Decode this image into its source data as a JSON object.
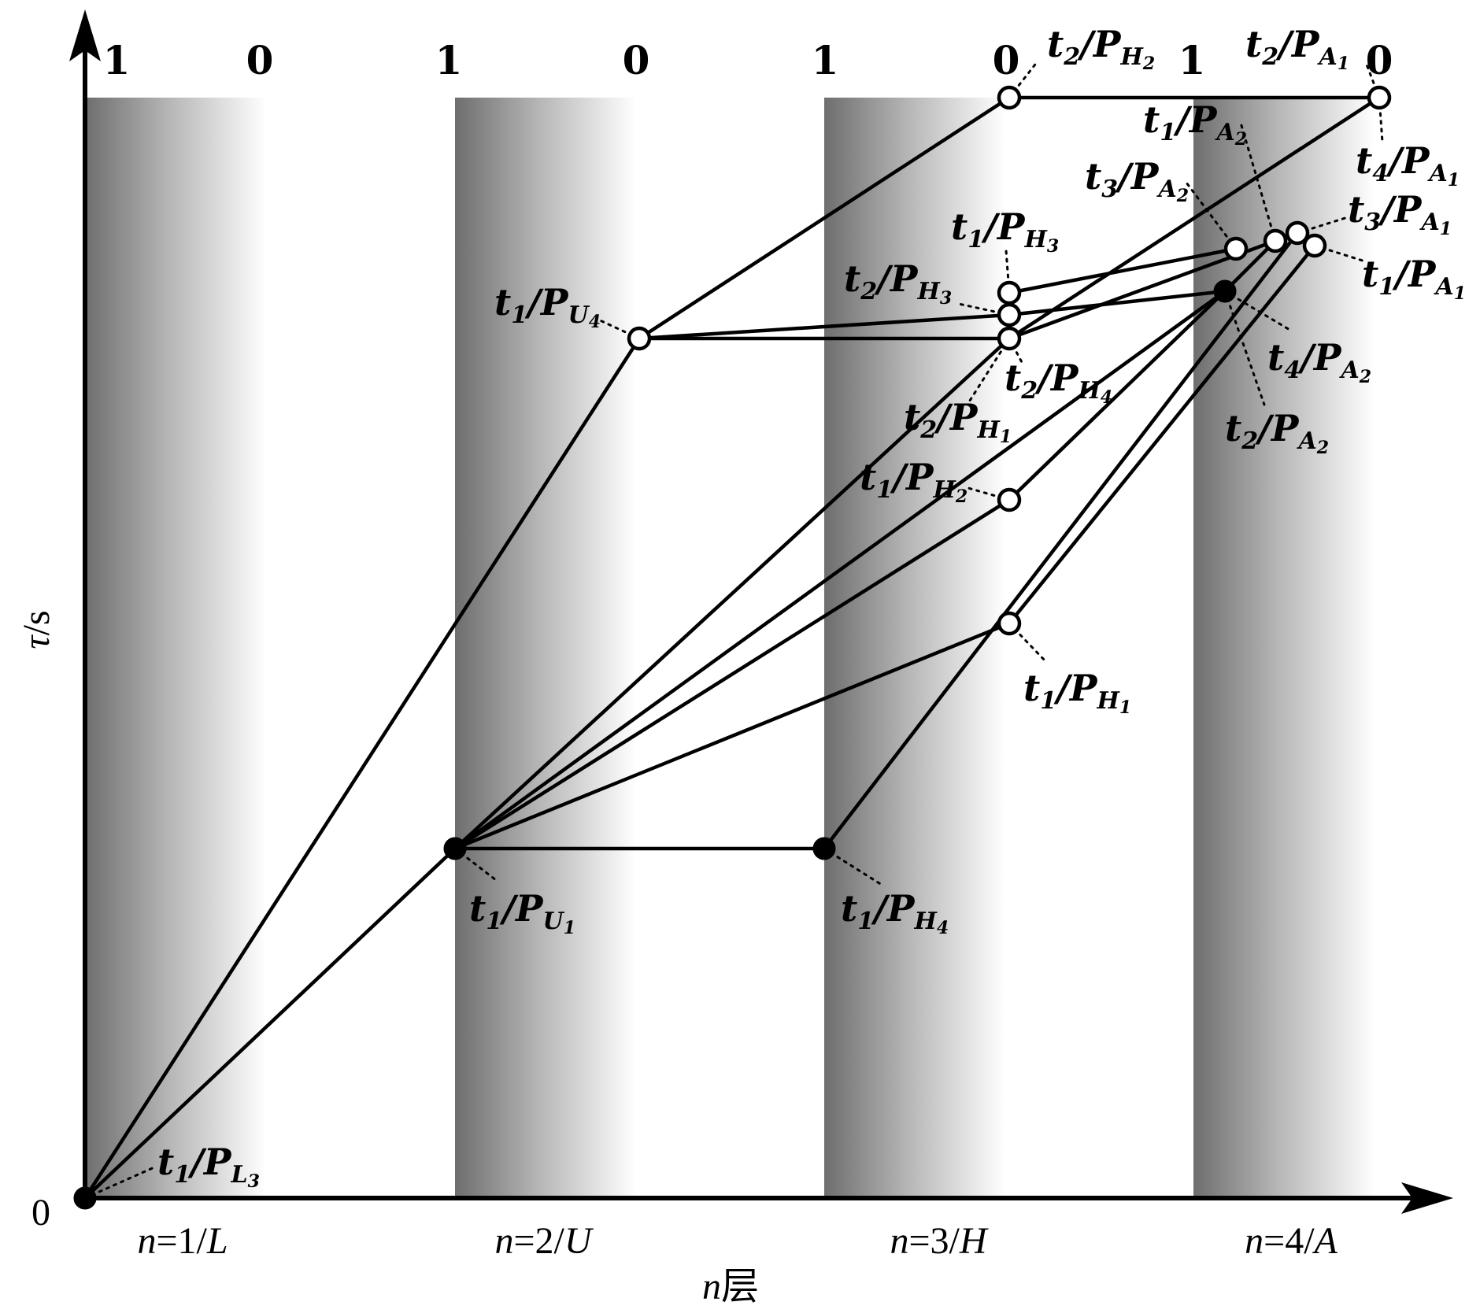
{
  "axes": {
    "y_title_var": "τ",
    "y_title_unit": "/s",
    "x_title_var": "n",
    "x_title_suffix": "层",
    "origin": "0"
  },
  "layers": [
    {
      "n": "n",
      "eq": "=1/",
      "letter": "L"
    },
    {
      "n": "n",
      "eq": "=2/",
      "letter": "U"
    },
    {
      "n": "n",
      "eq": "=3/",
      "letter": "H"
    },
    {
      "n": "n",
      "eq": "=4/",
      "letter": "A"
    }
  ],
  "top_bits": [
    "1",
    "0",
    "1",
    "0",
    "1",
    "0",
    "1",
    "0"
  ],
  "nodes": {
    "t1_PL3": {
      "t": "t",
      "ti": "1",
      "p": "/P",
      "ps": "L",
      "pss": "3",
      "style": "filled"
    },
    "t1_PU1": {
      "t": "t",
      "ti": "1",
      "p": "/P",
      "ps": "U",
      "pss": "1",
      "style": "filled"
    },
    "t1_PU4": {
      "t": "t",
      "ti": "1",
      "p": "/P",
      "ps": "U",
      "pss": "4",
      "style": "open"
    },
    "t1_PH4": {
      "t": "t",
      "ti": "1",
      "p": "/P",
      "ps": "H",
      "pss": "4",
      "style": "filled"
    },
    "t1_PH1": {
      "t": "t",
      "ti": "1",
      "p": "/P",
      "ps": "H",
      "pss": "1",
      "style": "open"
    },
    "t1_PH2": {
      "t": "t",
      "ti": "1",
      "p": "/P",
      "ps": "H",
      "pss": "2",
      "style": "open"
    },
    "t2_PH1": {
      "t": "t",
      "ti": "2",
      "p": "/P",
      "ps": "H",
      "pss": "1",
      "style": "open"
    },
    "t2_PH4": {
      "t": "t",
      "ti": "2",
      "p": "/P",
      "ps": "H",
      "pss": "4",
      "style": "open"
    },
    "t2_PH3": {
      "t": "t",
      "ti": "2",
      "p": "/P",
      "ps": "H",
      "pss": "3",
      "style": "open"
    },
    "t1_PH3": {
      "t": "t",
      "ti": "1",
      "p": "/P",
      "ps": "H",
      "pss": "3",
      "style": "open"
    },
    "t2_PH2": {
      "t": "t",
      "ti": "2",
      "p": "/P",
      "ps": "H",
      "pss": "2",
      "style": "open"
    },
    "t2_PA1": {
      "t": "t",
      "ti": "2",
      "p": "/P",
      "ps": "A",
      "pss": "1",
      "style": "open"
    },
    "t1_PA2": {
      "t": "t",
      "ti": "1",
      "p": "/P",
      "ps": "A",
      "pss": "2",
      "style": "open"
    },
    "t3_PA2": {
      "t": "t",
      "ti": "3",
      "p": "/P",
      "ps": "A",
      "pss": "2",
      "style": "open"
    },
    "t4_PA1": {
      "t": "t",
      "ti": "4",
      "p": "/P",
      "ps": "A",
      "pss": "1",
      "style": "open"
    },
    "t3_PA1": {
      "t": "t",
      "ti": "3",
      "p": "/P",
      "ps": "A",
      "pss": "1",
      "style": "open"
    },
    "t1_PA1": {
      "t": "t",
      "ti": "1",
      "p": "/P",
      "ps": "A",
      "pss": "1",
      "style": "open"
    },
    "t4_PA2": {
      "t": "t",
      "ti": "4",
      "p": "/P",
      "ps": "A",
      "pss": "2",
      "style": "filled"
    },
    "t2_PA2": {
      "t": "t",
      "ti": "2",
      "p": "/P",
      "ps": "A",
      "pss": "2",
      "style": "filled"
    }
  }
}
